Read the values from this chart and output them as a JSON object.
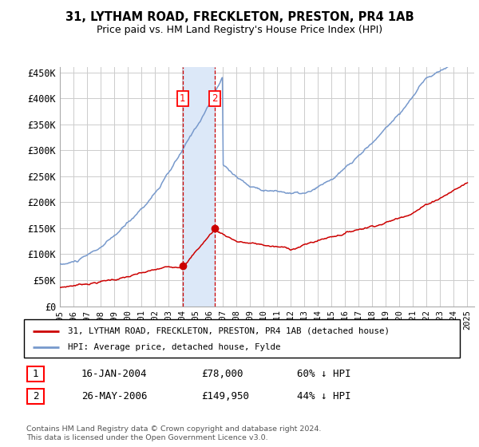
{
  "title": "31, LYTHAM ROAD, FRECKLETON, PRESTON, PR4 1AB",
  "subtitle": "Price paid vs. HM Land Registry's House Price Index (HPI)",
  "hpi_color": "#7799cc",
  "price_color": "#cc0000",
  "background_color": "#ffffff",
  "grid_color": "#cccccc",
  "ylim": [
    0,
    460000
  ],
  "yticks": [
    0,
    50000,
    100000,
    150000,
    200000,
    250000,
    300000,
    350000,
    400000,
    450000
  ],
  "ytick_labels": [
    "£0",
    "£50K",
    "£100K",
    "£150K",
    "£200K",
    "£250K",
    "£300K",
    "£350K",
    "£400K",
    "£450K"
  ],
  "sale1_date_num": 2004.04,
  "sale1_price": 78000,
  "sale1_label": "1",
  "sale2_date_num": 2006.39,
  "sale2_price": 149950,
  "sale2_label": "2",
  "legend_line1": "31, LYTHAM ROAD, FRECKLETON, PRESTON, PR4 1AB (detached house)",
  "legend_line2": "HPI: Average price, detached house, Fylde",
  "table_row1": [
    "1",
    "16-JAN-2004",
    "£78,000",
    "60% ↓ HPI"
  ],
  "table_row2": [
    "2",
    "26-MAY-2006",
    "£149,950",
    "44% ↓ HPI"
  ],
  "footnote": "Contains HM Land Registry data © Crown copyright and database right 2024.\nThis data is licensed under the Open Government Licence v3.0.",
  "xmin": 1995.0,
  "xmax": 2025.5,
  "span_color": "#dce8f8"
}
